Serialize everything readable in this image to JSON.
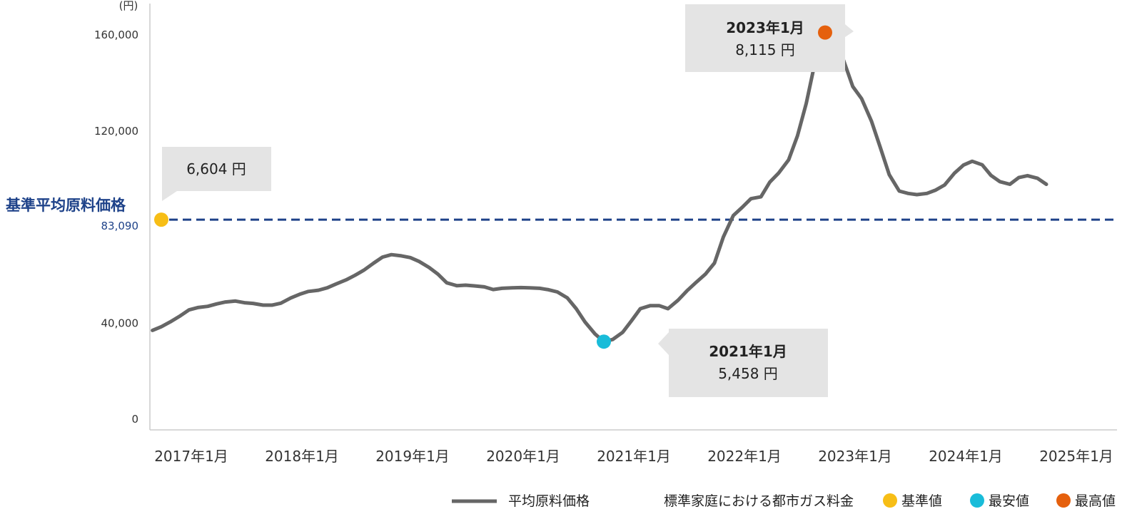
{
  "chart_data": {
    "type": "line",
    "unit": "(円)",
    "ylim": [
      0,
      160000
    ],
    "yticks": [
      {
        "value": 0,
        "label": "0"
      },
      {
        "value": 40000,
        "label": "40,000"
      },
      {
        "value": 120000,
        "label": "120,000"
      },
      {
        "value": 160000,
        "label": "160,000"
      }
    ],
    "xticks": [
      {
        "x": 2017,
        "label": "2017年1月"
      },
      {
        "x": 2018,
        "label": "2018年1月"
      },
      {
        "x": 2019,
        "label": "2019年1月"
      },
      {
        "x": 2020,
        "label": "2020年1月"
      },
      {
        "x": 2021,
        "label": "2021年1月"
      },
      {
        "x": 2022,
        "label": "2022年1月"
      },
      {
        "x": 2023,
        "label": "2023年1月"
      },
      {
        "x": 2024,
        "label": "2024年1月"
      },
      {
        "x": 2025,
        "label": "2025年1月"
      }
    ],
    "xlim": [
      2017.0,
      2025.68
    ],
    "reference_line": {
      "label": "基準平均原料価格",
      "value_label": "83,090",
      "value": 83090,
      "color": "#1e4289"
    },
    "series": [
      {
        "name": "平均原料価格",
        "color": "#666666",
        "points": [
          [
            2016.92,
            37000
          ],
          [
            2017.0,
            38500
          ],
          [
            2017.08,
            40500
          ],
          [
            2017.17,
            43000
          ],
          [
            2017.25,
            45500
          ],
          [
            2017.33,
            46500
          ],
          [
            2017.42,
            47000
          ],
          [
            2017.5,
            48000
          ],
          [
            2017.58,
            48800
          ],
          [
            2017.67,
            49200
          ],
          [
            2017.75,
            48500
          ],
          [
            2017.83,
            48200
          ],
          [
            2017.92,
            47500
          ],
          [
            2018.0,
            47500
          ],
          [
            2018.08,
            48300
          ],
          [
            2018.17,
            50500
          ],
          [
            2018.25,
            52000
          ],
          [
            2018.33,
            53200
          ],
          [
            2018.42,
            53700
          ],
          [
            2018.5,
            54700
          ],
          [
            2018.58,
            56300
          ],
          [
            2018.67,
            58000
          ],
          [
            2018.75,
            59900
          ],
          [
            2018.83,
            62000
          ],
          [
            2018.92,
            65000
          ],
          [
            2019.0,
            67500
          ],
          [
            2019.08,
            68500
          ],
          [
            2019.17,
            68000
          ],
          [
            2019.25,
            67300
          ],
          [
            2019.33,
            65700
          ],
          [
            2019.42,
            63200
          ],
          [
            2019.5,
            60400
          ],
          [
            2019.58,
            56800
          ],
          [
            2019.67,
            55600
          ],
          [
            2019.75,
            55800
          ],
          [
            2019.83,
            55500
          ],
          [
            2019.92,
            55100
          ],
          [
            2020.0,
            54000
          ],
          [
            2020.08,
            54500
          ],
          [
            2020.17,
            54700
          ],
          [
            2020.25,
            54800
          ],
          [
            2020.33,
            54700
          ],
          [
            2020.42,
            54500
          ],
          [
            2020.5,
            53900
          ],
          [
            2020.58,
            53000
          ],
          [
            2020.67,
            50500
          ],
          [
            2020.75,
            46000
          ],
          [
            2020.83,
            40500
          ],
          [
            2020.92,
            35500
          ],
          [
            2021.0,
            32300
          ],
          [
            2021.08,
            33200
          ],
          [
            2021.17,
            36200
          ],
          [
            2021.25,
            41000
          ],
          [
            2021.33,
            46000
          ],
          [
            2021.42,
            47300
          ],
          [
            2021.5,
            47300
          ],
          [
            2021.58,
            46000
          ],
          [
            2021.67,
            49500
          ],
          [
            2021.75,
            53400
          ],
          [
            2021.83,
            56800
          ],
          [
            2021.92,
            60500
          ],
          [
            2022.0,
            65000
          ],
          [
            2022.08,
            75800
          ],
          [
            2022.17,
            84800
          ],
          [
            2022.25,
            88200
          ],
          [
            2022.33,
            91800
          ],
          [
            2022.42,
            92600
          ],
          [
            2022.5,
            98700
          ],
          [
            2022.58,
            102500
          ],
          [
            2022.67,
            108000
          ],
          [
            2022.75,
            118000
          ],
          [
            2022.83,
            131500
          ],
          [
            2022.92,
            151000
          ],
          [
            2023.0,
            161000
          ],
          [
            2023.08,
            161000
          ],
          [
            2023.17,
            149000
          ],
          [
            2023.25,
            138500
          ],
          [
            2023.33,
            133500
          ],
          [
            2023.42,
            124000
          ],
          [
            2023.5,
            113000
          ],
          [
            2023.58,
            101800
          ],
          [
            2023.67,
            95000
          ],
          [
            2023.75,
            94000
          ],
          [
            2023.83,
            93500
          ],
          [
            2023.92,
            94000
          ],
          [
            2024.0,
            95400
          ],
          [
            2024.08,
            97500
          ],
          [
            2024.17,
            102500
          ],
          [
            2024.25,
            105800
          ],
          [
            2024.33,
            107400
          ],
          [
            2024.42,
            105900
          ],
          [
            2024.5,
            101500
          ],
          [
            2024.58,
            98900
          ],
          [
            2024.67,
            97800
          ],
          [
            2024.75,
            100600
          ],
          [
            2024.83,
            101400
          ],
          [
            2024.92,
            100300
          ],
          [
            2025.0,
            97800
          ]
        ]
      }
    ],
    "markers": [
      {
        "name": "基準値",
        "x": 2017.0,
        "value": 83090,
        "color": "#f7be16"
      },
      {
        "name": "最安値",
        "x": 2021.0,
        "value": 32300,
        "color": "#19bcd9"
      },
      {
        "name": "最高値",
        "x": 2023.0,
        "value": 161000,
        "color": "#e5600d"
      }
    ],
    "callouts": [
      {
        "name": "基準値",
        "date": "",
        "price": "6,604 円"
      },
      {
        "name": "最安値",
        "date": "2021年1月",
        "price": "5,458 円"
      },
      {
        "name": "最高値",
        "date": "2023年1月",
        "price": "8,115 円"
      }
    ],
    "legend": {
      "line_label": "平均原料価格",
      "group_label": "標準家庭における都市ガス料金",
      "marker_labels": [
        "基準値",
        "最安値",
        "最高値"
      ]
    }
  }
}
